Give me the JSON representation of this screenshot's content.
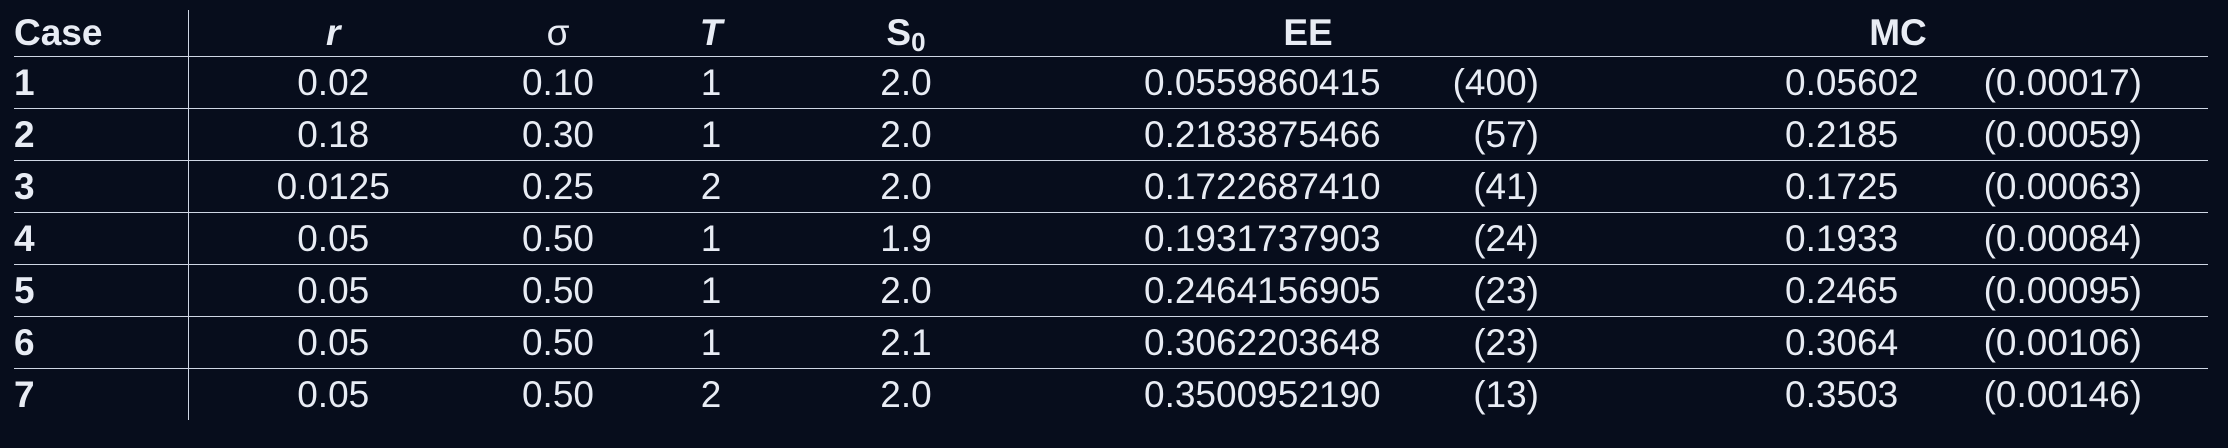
{
  "table": {
    "headers": {
      "case": "Case",
      "r": "r",
      "sigma": "σ",
      "T": "T",
      "S0_main": "S",
      "S0_sub": "0",
      "EE": "EE",
      "MC": "MC"
    },
    "rows": [
      {
        "case": "1",
        "r": "0.02",
        "sigma": "0.10",
        "T": "1",
        "S0": "2.0",
        "ee_value": "0.0559860415",
        "ee_unc": "(400)",
        "mc_value": "0.05602",
        "mc_unc": "(0.00017)"
      },
      {
        "case": "2",
        "r": "0.18",
        "sigma": "0.30",
        "T": "1",
        "S0": "2.0",
        "ee_value": "0.2183875466",
        "ee_unc": "(57)",
        "mc_value": "0.2185",
        "mc_unc": "(0.00059)"
      },
      {
        "case": "3",
        "r": "0.0125",
        "sigma": "0.25",
        "T": "2",
        "S0": "2.0",
        "ee_value": "0.1722687410",
        "ee_unc": "(41)",
        "mc_value": "0.1725",
        "mc_unc": "(0.00063)"
      },
      {
        "case": "4",
        "r": "0.05",
        "sigma": "0.50",
        "T": "1",
        "S0": "1.9",
        "ee_value": "0.1931737903",
        "ee_unc": "(24)",
        "mc_value": "0.1933",
        "mc_unc": "(0.00084)"
      },
      {
        "case": "5",
        "r": "0.05",
        "sigma": "0.50",
        "T": "1",
        "S0": "2.0",
        "ee_value": "0.2464156905",
        "ee_unc": "(23)",
        "mc_value": "0.2465",
        "mc_unc": "(0.00095)"
      },
      {
        "case": "6",
        "r": "0.05",
        "sigma": "0.50",
        "T": "1",
        "S0": "2.1",
        "ee_value": "0.3062203648",
        "ee_unc": "(23)",
        "mc_value": "0.3064",
        "mc_unc": "(0.00106)"
      },
      {
        "case": "7",
        "r": "0.05",
        "sigma": "0.50",
        "T": "2",
        "S0": "2.0",
        "ee_value": "0.3500952190",
        "ee_unc": "(13)",
        "mc_value": "0.3503",
        "mc_unc": "(0.00146)"
      }
    ]
  },
  "colors": {
    "background": "#070d1c",
    "text": "#e8ecf4",
    "rule": "#cfd6e4"
  }
}
